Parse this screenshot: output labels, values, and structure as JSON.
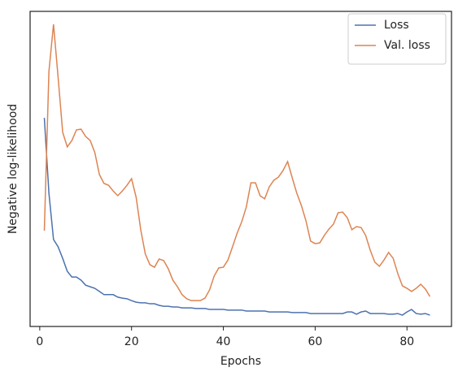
{
  "chart_data": {
    "type": "line",
    "xlabel": "Epochs",
    "ylabel": "Negative log-likelihood",
    "x": [
      1,
      2,
      3,
      4,
      5,
      6,
      7,
      8,
      9,
      10,
      11,
      12,
      13,
      14,
      15,
      16,
      17,
      18,
      19,
      20,
      21,
      22,
      23,
      24,
      25,
      26,
      27,
      28,
      29,
      30,
      31,
      32,
      33,
      34,
      35,
      36,
      37,
      38,
      39,
      40,
      41,
      42,
      43,
      44,
      45,
      46,
      47,
      48,
      49,
      50,
      51,
      52,
      53,
      54,
      55,
      56,
      57,
      58,
      59,
      60,
      61,
      62,
      63,
      64,
      65,
      66,
      67,
      68,
      69,
      70,
      71,
      72,
      73,
      74,
      75,
      76,
      77,
      78,
      79,
      80,
      81,
      82,
      83,
      84,
      85
    ],
    "series": [
      {
        "name": "Loss",
        "color": "#4c72b0",
        "values": [
          66.2,
          42.3,
          27.6,
          25.3,
          21.6,
          17.5,
          15.7,
          15.7,
          14.7,
          13.1,
          12.6,
          12.1,
          11.1,
          10.1,
          10.1,
          10.1,
          9.3,
          9.0,
          8.8,
          8.2,
          7.7,
          7.5,
          7.5,
          7.2,
          7.2,
          6.7,
          6.4,
          6.4,
          6.2,
          6.2,
          5.9,
          5.9,
          5.9,
          5.7,
          5.7,
          5.7,
          5.4,
          5.4,
          5.4,
          5.4,
          5.2,
          5.2,
          5.2,
          5.2,
          4.9,
          4.9,
          4.9,
          4.9,
          4.9,
          4.6,
          4.6,
          4.6,
          4.6,
          4.6,
          4.4,
          4.4,
          4.4,
          4.4,
          4.1,
          4.1,
          4.1,
          4.1,
          4.1,
          4.1,
          4.1,
          4.1,
          4.6,
          4.6,
          3.9,
          4.6,
          4.9,
          4.1,
          4.1,
          4.1,
          4.1,
          3.9,
          3.9,
          4.1,
          3.6,
          4.6,
          5.4,
          4.1,
          3.9,
          4.1,
          3.6
        ]
      },
      {
        "name": "Val. loss",
        "color": "#dd8452",
        "values": [
          30.4,
          80.9,
          95.9,
          79.1,
          61.6,
          57.0,
          59.0,
          62.4,
          62.6,
          60.3,
          59.0,
          55.2,
          48.2,
          45.4,
          44.8,
          43.0,
          41.5,
          43.0,
          44.8,
          46.9,
          41.0,
          30.7,
          23.0,
          19.6,
          18.8,
          21.4,
          20.9,
          18.3,
          14.7,
          12.6,
          10.1,
          8.8,
          8.2,
          8.2,
          8.2,
          9.0,
          11.6,
          16.0,
          18.6,
          18.8,
          21.1,
          25.3,
          29.6,
          33.2,
          37.9,
          45.6,
          45.6,
          41.5,
          40.5,
          44.3,
          46.4,
          47.4,
          49.5,
          52.3,
          47.2,
          42.3,
          38.4,
          33.5,
          27.1,
          26.3,
          26.5,
          28.9,
          30.9,
          32.5,
          36.1,
          36.3,
          34.5,
          30.7,
          31.7,
          31.4,
          28.9,
          24.2,
          20.4,
          19.1,
          21.1,
          23.5,
          21.6,
          16.8,
          12.9,
          12.1,
          11.1,
          12.1,
          13.4,
          11.9,
          9.5
        ]
      }
    ],
    "xlim": [
      -2.1,
      89.7
    ],
    "xticks": [
      0,
      20,
      40,
      60,
      80
    ],
    "ylim": [
      0,
      100
    ],
    "legend": "upper right"
  }
}
